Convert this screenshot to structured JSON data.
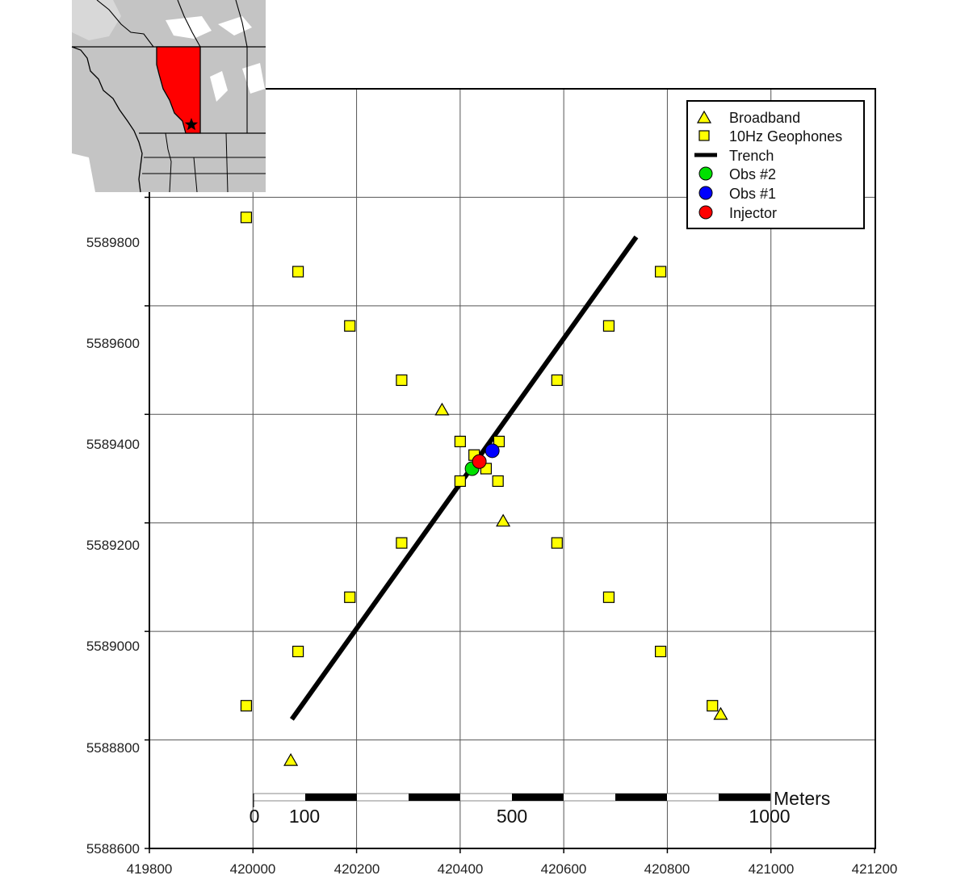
{
  "legend": {
    "items": [
      {
        "label": "Broadband",
        "symbol": "triangle",
        "color": "#ffff00"
      },
      {
        "label": "10Hz Geophones",
        "symbol": "square",
        "color": "#ffff00"
      },
      {
        "label": "Trench",
        "symbol": "line",
        "color": "#000000"
      },
      {
        "label": "Obs #2",
        "symbol": "circle",
        "color": "#00e000"
      },
      {
        "label": "Obs #1",
        "symbol": "circle",
        "color": "#0000ff"
      },
      {
        "label": "Injector",
        "symbol": "circle",
        "color": "#ff0000"
      }
    ]
  },
  "axes": {
    "x_ticks": [
      "419800",
      "420000",
      "420200",
      "420400",
      "420600",
      "420800",
      "421000",
      "421200"
    ],
    "y_ticks": [
      "5588600",
      "5588800",
      "5589000",
      "5589200",
      "5589400",
      "5589600",
      "5589800"
    ]
  },
  "scale_bar": {
    "unit": "Meters",
    "labels": [
      "0",
      "100",
      "500",
      "1000"
    ]
  },
  "inset": {
    "highlight_color": "#ff0000",
    "marker": "star-icon"
  },
  "chart_data": {
    "type": "scatter",
    "xlim": [
      419800,
      421200
    ],
    "ylim": [
      5588600,
      5590000
    ],
    "grid": true,
    "legend_position": "top-right",
    "broadband": [
      {
        "x": 420365,
        "y": 5589408
      },
      {
        "x": 420483,
        "y": 5589203
      },
      {
        "x": 420073,
        "y": 5588762
      },
      {
        "x": 420903,
        "y": 5588847
      }
    ],
    "geophones": [
      {
        "x": 419987,
        "y": 5589763
      },
      {
        "x": 420087,
        "y": 5589663
      },
      {
        "x": 420187,
        "y": 5589563
      },
      {
        "x": 420287,
        "y": 5589463
      },
      {
        "x": 420400,
        "y": 5589350
      },
      {
        "x": 420427,
        "y": 5589325
      },
      {
        "x": 420450,
        "y": 5589300
      },
      {
        "x": 420475,
        "y": 5589350
      },
      {
        "x": 420473,
        "y": 5589277
      },
      {
        "x": 420400,
        "y": 5589277
      },
      {
        "x": 420287,
        "y": 5589163
      },
      {
        "x": 420187,
        "y": 5589063
      },
      {
        "x": 420087,
        "y": 5588963
      },
      {
        "x": 419987,
        "y": 5588863
      },
      {
        "x": 420587,
        "y": 5589463
      },
      {
        "x": 420687,
        "y": 5589563
      },
      {
        "x": 420787,
        "y": 5589663
      },
      {
        "x": 420887,
        "y": 5589763
      },
      {
        "x": 420587,
        "y": 5589163
      },
      {
        "x": 420687,
        "y": 5589063
      },
      {
        "x": 420787,
        "y": 5588963
      },
      {
        "x": 420887,
        "y": 5588863
      }
    ],
    "trench": [
      {
        "x": 420075,
        "y": 5588838
      },
      {
        "x": 420740,
        "y": 5589727
      }
    ],
    "obs2": {
      "x": 420423,
      "y": 5589300
    },
    "obs1": {
      "x": 420462,
      "y": 5589333
    },
    "injector": {
      "x": 420437,
      "y": 5589313
    }
  }
}
